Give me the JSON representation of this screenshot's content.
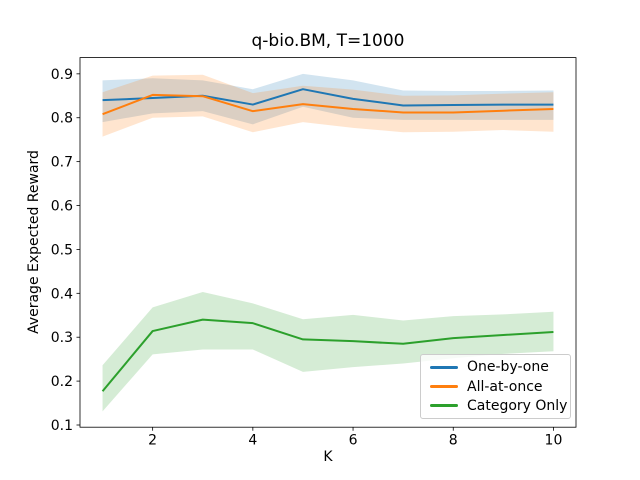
{
  "figure": {
    "title": "q-bio.BM, T=1000",
    "xlabel": "K",
    "ylabel": "Average Expected Reward"
  },
  "chart_data": {
    "type": "line",
    "title": "q-bio.BM, T=1000",
    "xlabel": "K",
    "ylabel": "Average Expected Reward",
    "grid": false,
    "legend_position": "lower right",
    "xlim": [
      0.55,
      10.45
    ],
    "ylim": [
      0.095,
      0.937
    ],
    "xticks": [
      2,
      4,
      6,
      8,
      10
    ],
    "yticks": [
      0.1,
      0.2,
      0.3,
      0.4,
      0.5,
      0.6,
      0.7,
      0.8,
      0.9
    ],
    "x": [
      1,
      2,
      3,
      4,
      5,
      6,
      7,
      8,
      9,
      10
    ],
    "band_alpha": 0.2,
    "series": [
      {
        "name": "One-by-one",
        "color": "#1f77b4",
        "values": [
          0.84,
          0.845,
          0.85,
          0.83,
          0.865,
          0.843,
          0.828,
          0.829,
          0.83,
          0.83
        ],
        "band_lo": [
          0.79,
          0.81,
          0.815,
          0.785,
          0.825,
          0.8,
          0.795,
          0.795,
          0.795,
          0.795
        ],
        "band_hi": [
          0.885,
          0.89,
          0.885,
          0.865,
          0.9,
          0.885,
          0.862,
          0.861,
          0.861,
          0.862
        ]
      },
      {
        "name": "All-at-once",
        "color": "#ff7f0e",
        "values": [
          0.808,
          0.852,
          0.849,
          0.815,
          0.831,
          0.82,
          0.812,
          0.812,
          0.816,
          0.82
        ],
        "band_lo": [
          0.757,
          0.8,
          0.803,
          0.767,
          0.79,
          0.777,
          0.767,
          0.768,
          0.772,
          0.768
        ],
        "band_hi": [
          0.858,
          0.896,
          0.898,
          0.856,
          0.873,
          0.864,
          0.85,
          0.851,
          0.855,
          0.858
        ]
      },
      {
        "name": "Category Only",
        "color": "#2ca02c",
        "values": [
          0.177,
          0.314,
          0.34,
          0.332,
          0.295,
          0.291,
          0.285,
          0.298,
          0.305,
          0.312
        ],
        "band_lo": [
          0.131,
          0.261,
          0.272,
          0.272,
          0.221,
          0.232,
          0.24,
          0.252,
          0.262,
          0.268
        ],
        "band_hi": [
          0.236,
          0.368,
          0.403,
          0.377,
          0.341,
          0.351,
          0.338,
          0.348,
          0.352,
          0.358
        ]
      }
    ]
  }
}
